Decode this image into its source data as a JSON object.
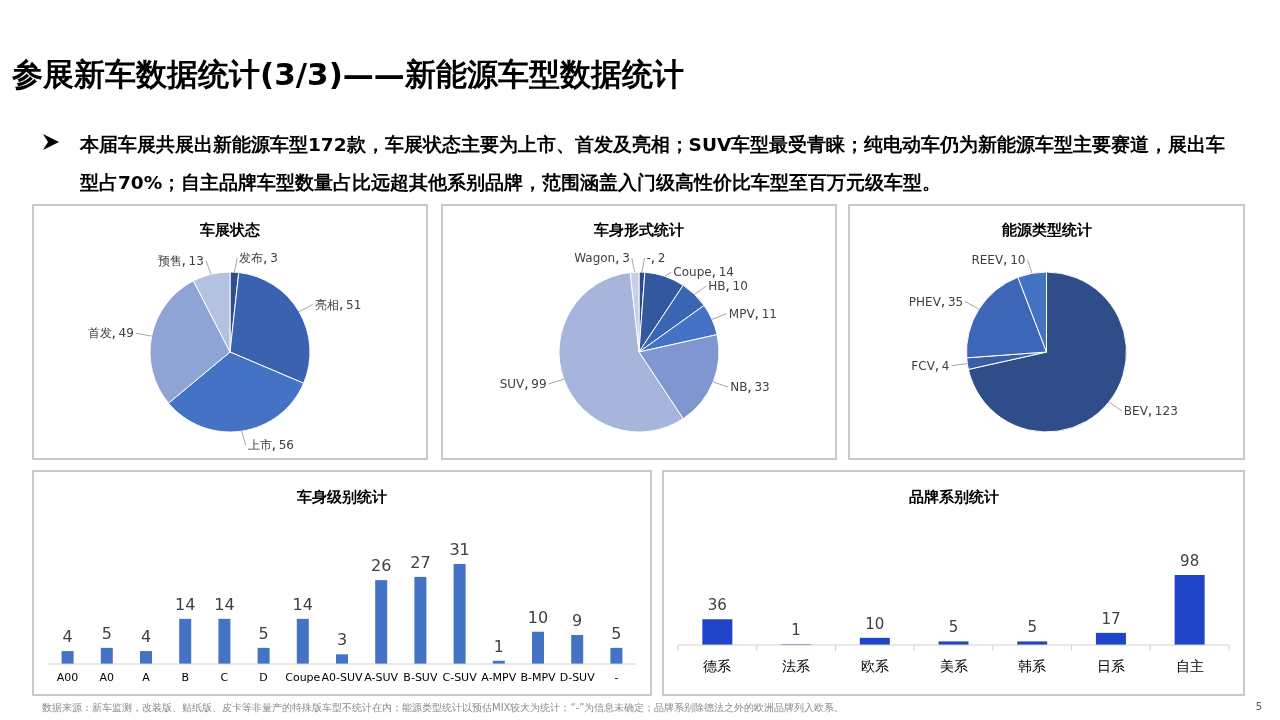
{
  "chart_data": [
    {
      "type": "other",
      "title": "参展新车数据统计(3/3)——新能源车型数据统计",
      "subtitle": "本届车展共展出新能源车型172款，车展状态主要为上市、首发及亮相；SUV车型最受青睐；纯电动车仍为新能源车型主要赛道，展出车型占70%；自主品牌车型数量占比远超其他系别品牌，范围涵盖入门级高性价比车型至百万元级车型。",
      "annotations": [
        "数据来源：新车监测，改装版、贴纸版、皮卡等非量产的特殊版车型不统计在内；能源类型统计以预估MIX较大为统计；“-”为信息未确定；品牌系别除德法之外的欧洲品牌列入欧系。",
        "5"
      ]
    },
    {
      "type": "pie",
      "title": "车展状态",
      "categories": [
        "发布",
        "亮相",
        "上市",
        "首发",
        "预售"
      ],
      "values": [
        3,
        51,
        56,
        49,
        13
      ],
      "colors": [
        "#2e4e8c",
        "#3a62b0",
        "#4472c4",
        "#8fa3d5",
        "#b5c1e1"
      ],
      "data_labels": true
    },
    {
      "type": "pie",
      "title": "车身形式统计",
      "categories": [
        "-",
        "Coupe",
        "HB",
        "MPV",
        "NB",
        "SUV",
        "Wagon"
      ],
      "values": [
        2,
        14,
        10,
        11,
        33,
        99,
        3
      ],
      "colors": [
        "#2b4a87",
        "#34589f",
        "#3a65b5",
        "#4472c4",
        "#8096d0",
        "#a7b5dc",
        "#c6cee8"
      ],
      "data_labels": true
    },
    {
      "type": "pie",
      "title": "能源类型统计",
      "categories": [
        "BEV",
        "FCV",
        "PHEV",
        "REEV"
      ],
      "values": [
        123,
        4,
        35,
        10
      ],
      "colors": [
        "#2f4d88",
        "#3a5ea6",
        "#3d66b8",
        "#4472c4"
      ],
      "data_labels": true
    },
    {
      "type": "bar",
      "title": "车身级别统计",
      "categories": [
        "A00",
        "A0",
        "A",
        "B",
        "C",
        "D",
        "Coupe",
        "A0-SUV",
        "A-SUV",
        "B-SUV",
        "C-SUV",
        "A-MPV",
        "B-MPV",
        "D-SUV",
        "-"
      ],
      "values": [
        4,
        5,
        4,
        14,
        14,
        5,
        14,
        3,
        26,
        27,
        31,
        1,
        10,
        9,
        5
      ],
      "color": "#4472c4",
      "data_labels": true
    },
    {
      "type": "bar",
      "title": "品牌系别统计",
      "categories": [
        "德系",
        "法系",
        "欧系",
        "美系",
        "韩系",
        "日系",
        "自主"
      ],
      "values": [
        36,
        1,
        10,
        5,
        5,
        17,
        98
      ],
      "color": "#1f44c8",
      "data_labels": true
    }
  ]
}
